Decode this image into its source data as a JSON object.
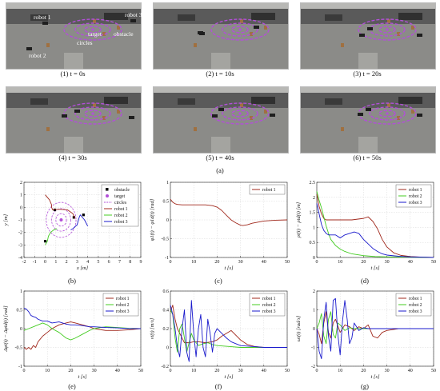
{
  "figure_caption": "(a)",
  "photos": [
    {
      "caption": "(1) t = 0s",
      "t": 0
    },
    {
      "caption": "(2) t = 10s",
      "t": 10
    },
    {
      "caption": "(3) t = 20s",
      "t": 20
    },
    {
      "caption": "(4) t = 30s",
      "t": 30
    },
    {
      "caption": "(5) t = 40s",
      "t": 40
    },
    {
      "caption": "(6) t = 50s",
      "t": 50
    }
  ],
  "photo_annotations": {
    "robot1": "robot 1",
    "robot2": "robot 2",
    "robot3": "robot 3",
    "target": "target",
    "obstacle": "obstacle",
    "circles": "circles"
  },
  "colors": {
    "robot1": "#a0281c",
    "robot2": "#44cc22",
    "robot3": "#1a1acc",
    "target": "#b24fd8",
    "circles": "#b24fd8",
    "obstacle": "#000000"
  },
  "chart_data": [
    {
      "id": "b",
      "caption": "(b)",
      "type": "line",
      "xlabel": "x [m]",
      "ylabel": "y [m]",
      "xlim": [
        -2,
        9
      ],
      "ylim": [
        -4,
        2
      ],
      "xticks": [
        -2,
        -1,
        0,
        1,
        2,
        3,
        4,
        5,
        6,
        7,
        8,
        9
      ],
      "yticks": [
        -4,
        -3,
        -2,
        -1,
        0,
        1,
        2
      ],
      "legend": [
        "obstacle",
        "target",
        "circles",
        "robot 1",
        "robot 2",
        "robot 3"
      ],
      "obstacles": [
        [
          0.9,
          -0.2
        ],
        [
          2.7,
          -0.8
        ],
        [
          3.6,
          -0.6
        ],
        [
          0.0,
          -2.7
        ]
      ],
      "target": [
        1.5,
        -1.0
      ],
      "circle_radii": [
        0.5,
        0.9,
        1.4
      ],
      "series": [
        {
          "name": "robot 1",
          "color": "#a0281c",
          "x": [
            0.0,
            0.4,
            0.6,
            0.6,
            0.7,
            1.3,
            2.1,
            2.6,
            2.8
          ],
          "y": [
            1.0,
            0.6,
            0.2,
            0.0,
            -0.2,
            -0.15,
            -0.2,
            -0.5,
            -0.9
          ]
        },
        {
          "name": "robot 2",
          "color": "#44cc22",
          "x": [
            0.0,
            0.2,
            0.3,
            0.5,
            0.8,
            1.1
          ],
          "y": [
            -3.0,
            -2.7,
            -2.3,
            -2.0,
            -1.8,
            -1.7
          ]
        },
        {
          "name": "robot 3",
          "color": "#1a1acc",
          "x": [
            4.0,
            3.7,
            3.3,
            3.2,
            3.0,
            2.6,
            2.4
          ],
          "y": [
            -1.5,
            -1.0,
            -0.6,
            -0.8,
            -1.4,
            -1.7,
            -1.8
          ]
        }
      ]
    },
    {
      "id": "c",
      "caption": "(c)",
      "type": "line",
      "xlabel": "t [s]",
      "ylabel": "φ1(t) − φ1d(t) [rad]",
      "xlim": [
        0,
        50
      ],
      "ylim": [
        -1,
        1
      ],
      "xticks": [
        0,
        10,
        20,
        30,
        40,
        50
      ],
      "yticks": [
        -1,
        -0.5,
        0,
        0.5,
        1
      ],
      "legend": [
        "robot 1"
      ],
      "series": [
        {
          "name": "robot 1",
          "color": "#a0281c",
          "x": [
            0,
            1,
            2,
            3,
            5,
            10,
            15,
            18,
            20,
            22,
            24,
            26,
            28,
            30,
            31,
            33,
            35,
            40,
            45,
            50
          ],
          "y": [
            0.55,
            0.47,
            0.43,
            0.41,
            0.4,
            0.4,
            0.4,
            0.38,
            0.34,
            0.25,
            0.12,
            0.0,
            -0.08,
            -0.14,
            -0.15,
            -0.13,
            -0.09,
            -0.03,
            -0.01,
            0.0
          ]
        }
      ]
    },
    {
      "id": "d",
      "caption": "(d)",
      "type": "line",
      "xlabel": "t [s]",
      "ylabel": "ρi(t) − ρid(t) [m]",
      "xlim": [
        0,
        50
      ],
      "ylim": [
        0,
        2.5
      ],
      "xticks": [
        0,
        10,
        20,
        30,
        40,
        50
      ],
      "yticks": [
        0,
        0.5,
        1,
        1.5,
        2,
        2.5
      ],
      "legend": [
        "robot 1",
        "robot 2",
        "robot 3"
      ],
      "series": [
        {
          "name": "robot 1",
          "color": "#a0281c",
          "x": [
            0,
            1,
            2,
            3,
            4,
            5,
            8,
            10,
            15,
            20,
            22,
            24,
            26,
            28,
            30,
            33,
            36,
            40,
            45,
            50
          ],
          "y": [
            2.1,
            1.7,
            1.45,
            1.3,
            1.25,
            1.25,
            1.25,
            1.25,
            1.25,
            1.3,
            1.35,
            1.2,
            0.95,
            0.6,
            0.35,
            0.15,
            0.07,
            0.03,
            0.01,
            0.0
          ]
        },
        {
          "name": "robot 2",
          "color": "#44cc22",
          "x": [
            0,
            1,
            2,
            3,
            4,
            5,
            6,
            8,
            10,
            12,
            15,
            20,
            25,
            30,
            40,
            50
          ],
          "y": [
            2.2,
            1.9,
            1.65,
            1.35,
            1.05,
            0.8,
            0.6,
            0.4,
            0.28,
            0.2,
            0.12,
            0.06,
            0.03,
            0.02,
            0.01,
            0.0
          ]
        },
        {
          "name": "robot 3",
          "color": "#1a1acc",
          "x": [
            0,
            1,
            2,
            3,
            4,
            5,
            6,
            8,
            10,
            12,
            14,
            16,
            18,
            20,
            22,
            24,
            26,
            28,
            30,
            35,
            40,
            50
          ],
          "y": [
            1.8,
            1.45,
            1.1,
            0.9,
            0.8,
            0.75,
            0.75,
            0.75,
            0.65,
            0.75,
            0.8,
            0.85,
            0.8,
            0.6,
            0.45,
            0.3,
            0.2,
            0.12,
            0.08,
            0.04,
            0.02,
            0.0
          ]
        }
      ]
    },
    {
      "id": "e",
      "caption": "(e)",
      "type": "line",
      "xlabel": "t [s]",
      "ylabel": "Δφi(t) − Δφid(t) [rad]",
      "xlim": [
        0,
        50
      ],
      "ylim": [
        -1,
        1
      ],
      "xticks": [
        0,
        10,
        20,
        30,
        40,
        50
      ],
      "yticks": [
        -1,
        -0.5,
        0,
        0.5,
        1
      ],
      "legend": [
        "robot 1",
        "robot 2",
        "robot 3"
      ],
      "series": [
        {
          "name": "robot 1",
          "color": "#a0281c",
          "x": [
            0,
            1,
            2,
            3,
            4,
            5,
            6,
            8,
            10,
            12,
            15,
            18,
            20,
            22,
            25,
            28,
            30,
            35,
            40,
            45,
            50
          ],
          "y": [
            -0.5,
            -0.55,
            -0.5,
            -0.55,
            -0.45,
            -0.5,
            -0.35,
            -0.2,
            -0.1,
            0.0,
            0.1,
            0.15,
            0.18,
            0.15,
            0.1,
            0.05,
            0.0,
            -0.05,
            -0.05,
            -0.03,
            0.0
          ]
        },
        {
          "name": "robot 2",
          "color": "#44cc22",
          "x": [
            0,
            2,
            4,
            6,
            8,
            10,
            12,
            15,
            18,
            20,
            22,
            25,
            28,
            30,
            35,
            40,
            45,
            50
          ],
          "y": [
            -0.05,
            0.0,
            0.05,
            0.1,
            0.15,
            0.1,
            0.0,
            -0.1,
            -0.25,
            -0.3,
            -0.25,
            -0.15,
            -0.05,
            0.0,
            0.05,
            0.03,
            0.01,
            0.0
          ]
        },
        {
          "name": "robot 3",
          "color": "#1a1acc",
          "x": [
            0,
            1,
            2,
            3,
            4,
            5,
            6,
            8,
            10,
            12,
            15,
            18,
            20,
            22,
            25,
            28,
            30,
            35,
            40,
            45,
            50
          ],
          "y": [
            0.55,
            0.52,
            0.45,
            0.35,
            0.32,
            0.3,
            0.25,
            0.2,
            0.2,
            0.15,
            0.18,
            0.12,
            0.1,
            0.1,
            0.08,
            0.05,
            0.05,
            0.03,
            0.02,
            0.0,
            0.0
          ]
        }
      ]
    },
    {
      "id": "f",
      "caption": "(f)",
      "type": "line",
      "xlabel": "t [s]",
      "ylabel": "vi(t) [m/s]",
      "xlim": [
        0,
        50
      ],
      "ylim": [
        -0.2,
        0.6
      ],
      "xticks": [
        0,
        10,
        20,
        30,
        40,
        50
      ],
      "yticks": [
        -0.2,
        0,
        0.2,
        0.4,
        0.6
      ],
      "legend": [
        "robot 1",
        "robot 2",
        "robot 3"
      ],
      "series": [
        {
          "name": "robot 1",
          "color": "#a0281c",
          "x": [
            0,
            1,
            2,
            3,
            4,
            5,
            6,
            8,
            10,
            12,
            15,
            18,
            20,
            22,
            24,
            26,
            28,
            30,
            33,
            36,
            40,
            45,
            50
          ],
          "y": [
            0.38,
            0.45,
            0.3,
            0.2,
            0.15,
            0.1,
            0.05,
            0.05,
            0.06,
            0.06,
            0.05,
            0.06,
            0.08,
            0.12,
            0.15,
            0.18,
            0.13,
            0.08,
            0.03,
            0.01,
            0.0,
            0.0,
            0.0
          ]
        },
        {
          "name": "robot 2",
          "color": "#44cc22",
          "x": [
            0,
            1,
            2,
            3,
            4,
            5,
            6,
            7,
            8,
            9,
            10,
            12,
            14,
            16,
            18,
            20,
            25,
            30,
            40,
            50
          ],
          "y": [
            0.4,
            0.35,
            0.1,
            -0.05,
            0.2,
            0.25,
            0.1,
            -0.05,
            0.05,
            0.15,
            0.08,
            0.02,
            0.04,
            0.05,
            0.03,
            0.02,
            0.01,
            0.0,
            0.0,
            0.0
          ]
        },
        {
          "name": "robot 3",
          "color": "#1a1acc",
          "x": [
            0,
            1,
            2,
            3,
            4,
            5,
            6,
            7,
            8,
            9,
            10,
            11,
            12,
            13,
            14,
            15,
            16,
            17,
            18,
            19,
            20,
            22,
            24,
            26,
            28,
            30,
            35,
            40,
            50
          ],
          "y": [
            0.45,
            0.35,
            0.2,
            0.0,
            -0.1,
            0.2,
            0.4,
            -0.05,
            -0.15,
            0.5,
            0.15,
            -0.1,
            0.2,
            0.35,
            0.0,
            -0.1,
            0.3,
            0.15,
            -0.05,
            0.15,
            0.2,
            0.15,
            0.1,
            0.06,
            0.04,
            0.02,
            0.01,
            0.0,
            0.0
          ]
        }
      ]
    },
    {
      "id": "g",
      "caption": "(g)",
      "type": "line",
      "xlabel": "t [s]",
      "ylabel": "ωi(t) [rad/s]",
      "xlim": [
        0,
        50
      ],
      "ylim": [
        -2,
        2
      ],
      "xticks": [
        0,
        10,
        20,
        30,
        40,
        50
      ],
      "yticks": [
        -2,
        -1,
        0,
        1,
        2
      ],
      "legend": [
        "robot 1",
        "robot 2",
        "robot 3"
      ],
      "series": [
        {
          "name": "robot 1",
          "color": "#a0281c",
          "x": [
            0,
            1,
            2,
            3,
            4,
            5,
            6,
            7,
            8,
            10,
            12,
            14,
            16,
            18,
            20,
            22,
            24,
            26,
            28,
            30,
            35,
            40,
            50
          ],
          "y": [
            0.0,
            -0.3,
            -0.8,
            0.3,
            0.9,
            -0.2,
            -0.5,
            0.3,
            0.5,
            -0.2,
            0.2,
            0.1,
            -0.1,
            0.1,
            0.0,
            0.2,
            -0.4,
            -0.5,
            -0.2,
            -0.1,
            0.0,
            0.0,
            0.0
          ]
        },
        {
          "name": "robot 2",
          "color": "#44cc22",
          "x": [
            0,
            1,
            2,
            3,
            4,
            5,
            6,
            7,
            8,
            9,
            10,
            12,
            14,
            16,
            18,
            20,
            25,
            30,
            40,
            50
          ],
          "y": [
            0.0,
            0.3,
            0.8,
            -0.4,
            -0.8,
            0.5,
            0.9,
            -0.3,
            -0.5,
            0.3,
            0.2,
            -0.1,
            0.05,
            0.0,
            0.0,
            0.0,
            0.0,
            0.0,
            0.0,
            0.0
          ]
        },
        {
          "name": "robot 3",
          "color": "#1a1acc",
          "x": [
            0,
            1,
            2,
            3,
            4,
            5,
            6,
            7,
            8,
            9,
            10,
            11,
            12,
            13,
            14,
            15,
            16,
            17,
            18,
            20,
            22,
            25,
            30,
            40,
            50
          ],
          "y": [
            0.0,
            -1.2,
            -1.6,
            0.5,
            1.4,
            -0.4,
            -1.2,
            1.5,
            1.6,
            -0.3,
            -1.4,
            0.4,
            1.5,
            0.5,
            -0.8,
            -0.5,
            0.3,
            0.1,
            -0.1,
            0.05,
            0.0,
            0.0,
            0.0,
            0.0,
            0.0
          ]
        }
      ]
    }
  ]
}
